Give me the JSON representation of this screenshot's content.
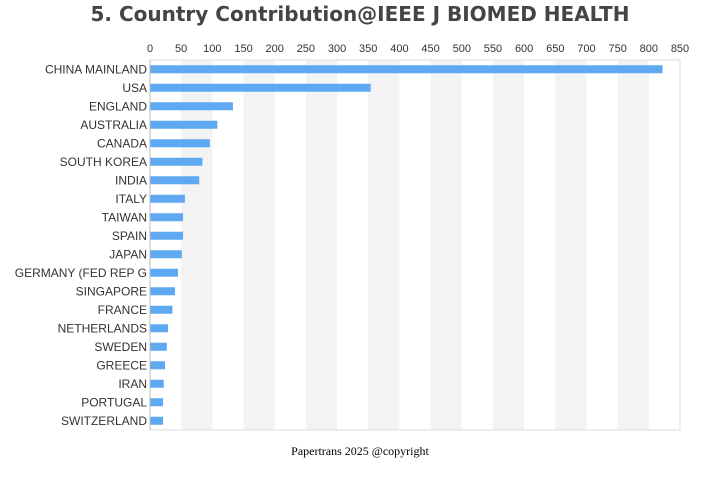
{
  "chart_data": {
    "type": "bar",
    "orientation": "horizontal",
    "title": "5. Country Contribution@IEEE J BIOMED HEALTH",
    "xlabel": "",
    "ylabel": "",
    "xlim": [
      0,
      850
    ],
    "xticks": [
      0,
      50,
      100,
      150,
      200,
      250,
      300,
      350,
      400,
      450,
      500,
      550,
      600,
      650,
      700,
      750,
      800,
      850
    ],
    "x_axis_position": "top",
    "grid": "alternating vertical bands",
    "legend": "none",
    "categories": [
      "CHINA MAINLAND",
      "USA",
      "ENGLAND",
      "AUSTRALIA",
      "CANADA",
      "SOUTH KOREA",
      "INDIA",
      "ITALY",
      "TAIWAN",
      "SPAIN",
      "JAPAN",
      "GERMANY (FED REP G",
      "SINGAPORE",
      "FRANCE",
      "NETHERLANDS",
      "SWEDEN",
      "GREECE",
      "IRAN",
      "PORTUGAL",
      "SWITZERLAND"
    ],
    "values": [
      822,
      354,
      133,
      108,
      96,
      84,
      79,
      56,
      53,
      53,
      51,
      45,
      40,
      36,
      29,
      27,
      24,
      22,
      21,
      21
    ],
    "bar_color": "#5fa8f2",
    "band_color": "#f3f3f3"
  },
  "footer": "Papertrans 2025 @copyright"
}
